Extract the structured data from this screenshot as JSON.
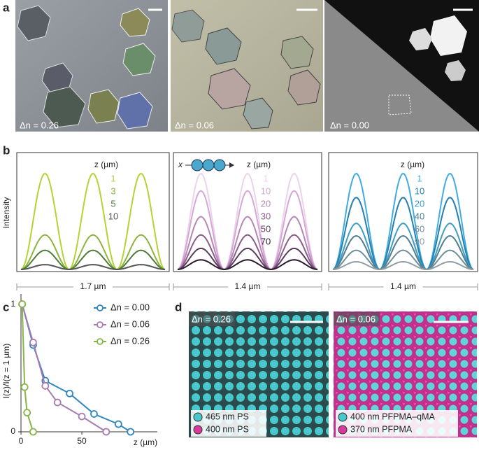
{
  "panel_labels": [
    "a",
    "b",
    "c",
    "d"
  ],
  "panel_a": {
    "images": [
      {
        "label": "Δn = 0.26"
      },
      {
        "label": "Δn = 0.06"
      },
      {
        "label": "Δn = 0.00"
      }
    ]
  },
  "panel_b": {
    "y_label": "Intensity",
    "schematic_label": "x",
    "plots": [
      {
        "legend_title": "z (µm)",
        "scale_label": "1.7 µm",
        "series": [
          {
            "name": "1",
            "color": "#b5d334",
            "peak": 1.0
          },
          {
            "name": "3",
            "color": "#8db43c",
            "peak": 0.36
          },
          {
            "name": "5",
            "color": "#4f7a3a",
            "peak": 0.2
          },
          {
            "name": "10",
            "color": "#555555",
            "peak": 0.05
          }
        ]
      },
      {
        "legend_title": "z (µm)",
        "scale_label": "1.4 µm",
        "series": [
          {
            "name": "1",
            "color": "#ecd3ec",
            "peak": 1.0
          },
          {
            "name": "10",
            "color": "#d6a6d6",
            "peak": 0.82
          },
          {
            "name": "20",
            "color": "#b686b6",
            "peak": 0.55
          },
          {
            "name": "30",
            "color": "#8a5c8a",
            "peak": 0.36
          },
          {
            "name": "50",
            "color": "#5c3c5c",
            "peak": 0.22
          },
          {
            "name": "70",
            "color": "#2e1a2e",
            "peak": 0.1
          }
        ]
      },
      {
        "legend_title": "z (µm)",
        "scale_label": "1.4 µm",
        "series": [
          {
            "name": "1",
            "color": "#42ace0",
            "peak": 1.0
          },
          {
            "name": "10",
            "color": "#237fb0",
            "peak": 0.75
          },
          {
            "name": "20",
            "color": "#3d9dc4",
            "peak": 0.48
          },
          {
            "name": "40",
            "color": "#4f7d90",
            "peak": 0.35
          },
          {
            "name": "60",
            "color": "#6f8e9a",
            "peak": 0.2
          },
          {
            "name": "90",
            "color": "#8e9ea4",
            "peak": 0.08
          }
        ]
      }
    ]
  },
  "chart_data": {
    "type": "line",
    "x_label": "z (µm)",
    "y_label": "I(z)/I(z = 1 µm)",
    "xlim": [
      0,
      112
    ],
    "ylim": [
      0,
      1.08
    ],
    "xticks": [
      0,
      50
    ],
    "yticks": [
      0,
      1
    ],
    "series": [
      {
        "name": "Δn = 0.00",
        "color": "#2f86c0",
        "x": [
          1,
          10,
          20,
          40,
          60,
          80,
          90
        ],
        "values": [
          1.0,
          0.68,
          0.4,
          0.3,
          0.14,
          0.06,
          0.0
        ]
      },
      {
        "name": "Δn = 0.06",
        "color": "#a77bb0",
        "x": [
          1,
          10,
          20,
          30,
          50,
          70
        ],
        "values": [
          1.0,
          0.7,
          0.36,
          0.23,
          0.12,
          0.0
        ]
      },
      {
        "name": "Δn = 0.26",
        "color": "#86b548",
        "x": [
          1,
          3,
          5,
          10
        ],
        "values": [
          1.0,
          0.35,
          0.15,
          0.0
        ]
      }
    ]
  },
  "panel_d": {
    "images": [
      {
        "label": "Δn = 0.26",
        "legend": [
          "465 nm PS",
          "400 nm PS"
        ]
      },
      {
        "label": "Δn = 0.06",
        "legend": [
          "400 nm PFPMA–qMA",
          "370 nm PFPMA"
        ]
      }
    ]
  }
}
